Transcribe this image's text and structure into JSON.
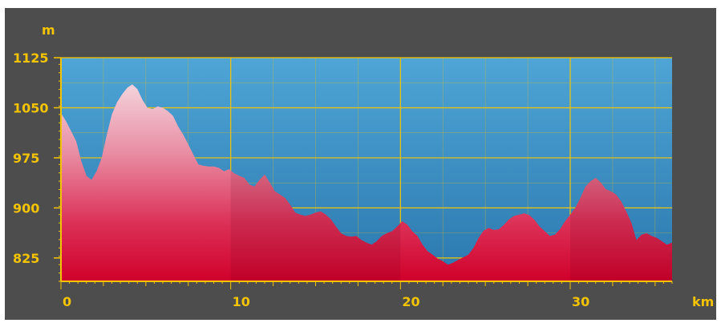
{
  "chart_data": {
    "type": "area",
    "title": "",
    "ylabel": "m",
    "xlabel": "km",
    "xlim": [
      0,
      36
    ],
    "ylim": [
      790,
      1125
    ],
    "x_ticks": [
      0,
      10,
      20,
      30
    ],
    "y_ticks": [
      825,
      900,
      975,
      1050,
      1125
    ],
    "x_tick_labels": [
      "0",
      "10",
      "20",
      "30"
    ],
    "y_tick_labels": [
      "825",
      "900",
      "975",
      "1050",
      "1125"
    ],
    "grid": true,
    "colors": {
      "background": "#4d4d4d",
      "plot_top": "#4a9fd0",
      "plot_bottom": "#2f7db3",
      "grid": "#f5c400",
      "fill_top": "#f2c8d4",
      "fill_bottom": "#d8002a",
      "text": "#f5c400"
    },
    "series": [
      {
        "x": [
          0,
          0.3,
          0.6,
          0.9,
          1.2,
          1.5,
          1.8,
          2.1,
          2.4,
          2.7,
          3.0,
          3.3,
          3.6,
          3.9,
          4.2,
          4.5,
          4.8,
          5.1,
          5.4,
          5.7,
          6.0,
          6.3,
          6.6,
          6.9,
          7.2,
          7.5,
          7.8,
          8.1,
          8.4,
          8.7,
          9.0,
          9.3,
          9.6,
          9.9,
          10.2,
          10.5,
          10.8,
          11.1,
          11.4,
          11.7,
          12.0,
          12.3,
          12.6,
          12.9,
          13.2,
          13.5,
          13.8,
          14.1,
          14.4,
          14.7,
          15.0,
          15.3,
          15.6,
          15.9,
          16.2,
          16.5,
          16.8,
          17.1,
          17.4,
          17.7,
          18.0,
          18.3,
          18.6,
          18.9,
          19.2,
          19.5,
          19.8,
          20.1,
          20.4,
          20.7,
          21.0,
          21.3,
          21.6,
          21.9,
          22.2,
          22.5,
          22.8,
          23.1,
          23.4,
          23.7,
          24.0,
          24.3,
          24.6,
          24.9,
          25.2,
          25.5,
          25.8,
          26.1,
          26.4,
          26.7,
          27.0,
          27.3,
          27.6,
          27.9,
          28.2,
          28.5,
          28.8,
          29.1,
          29.4,
          29.7,
          30.0,
          30.3,
          30.6,
          30.9,
          31.2,
          31.5,
          31.8,
          32.1,
          32.4,
          32.7,
          33.0,
          33.3,
          33.6,
          33.9,
          34.2,
          34.5,
          34.8,
          35.1,
          35.4,
          35.7,
          36.0
        ],
        "y": [
          1042,
          1030,
          1015,
          1000,
          970,
          948,
          942,
          955,
          975,
          1010,
          1040,
          1058,
          1070,
          1080,
          1085,
          1078,
          1062,
          1050,
          1048,
          1052,
          1050,
          1045,
          1038,
          1022,
          1010,
          995,
          980,
          965,
          963,
          962,
          962,
          960,
          955,
          958,
          952,
          948,
          945,
          935,
          932,
          942,
          950,
          938,
          925,
          920,
          915,
          905,
          893,
          890,
          888,
          890,
          893,
          895,
          890,
          883,
          872,
          862,
          858,
          857,
          858,
          852,
          848,
          845,
          850,
          858,
          862,
          865,
          872,
          880,
          875,
          865,
          858,
          845,
          835,
          830,
          824,
          820,
          815,
          818,
          822,
          826,
          830,
          840,
          855,
          866,
          870,
          867,
          868,
          875,
          883,
          888,
          890,
          892,
          889,
          882,
          872,
          865,
          858,
          860,
          868,
          880,
          890,
          900,
          915,
          932,
          940,
          945,
          938,
          928,
          925,
          920,
          910,
          895,
          878,
          852,
          860,
          862,
          858,
          855,
          850,
          845,
          848
        ]
      }
    ]
  }
}
